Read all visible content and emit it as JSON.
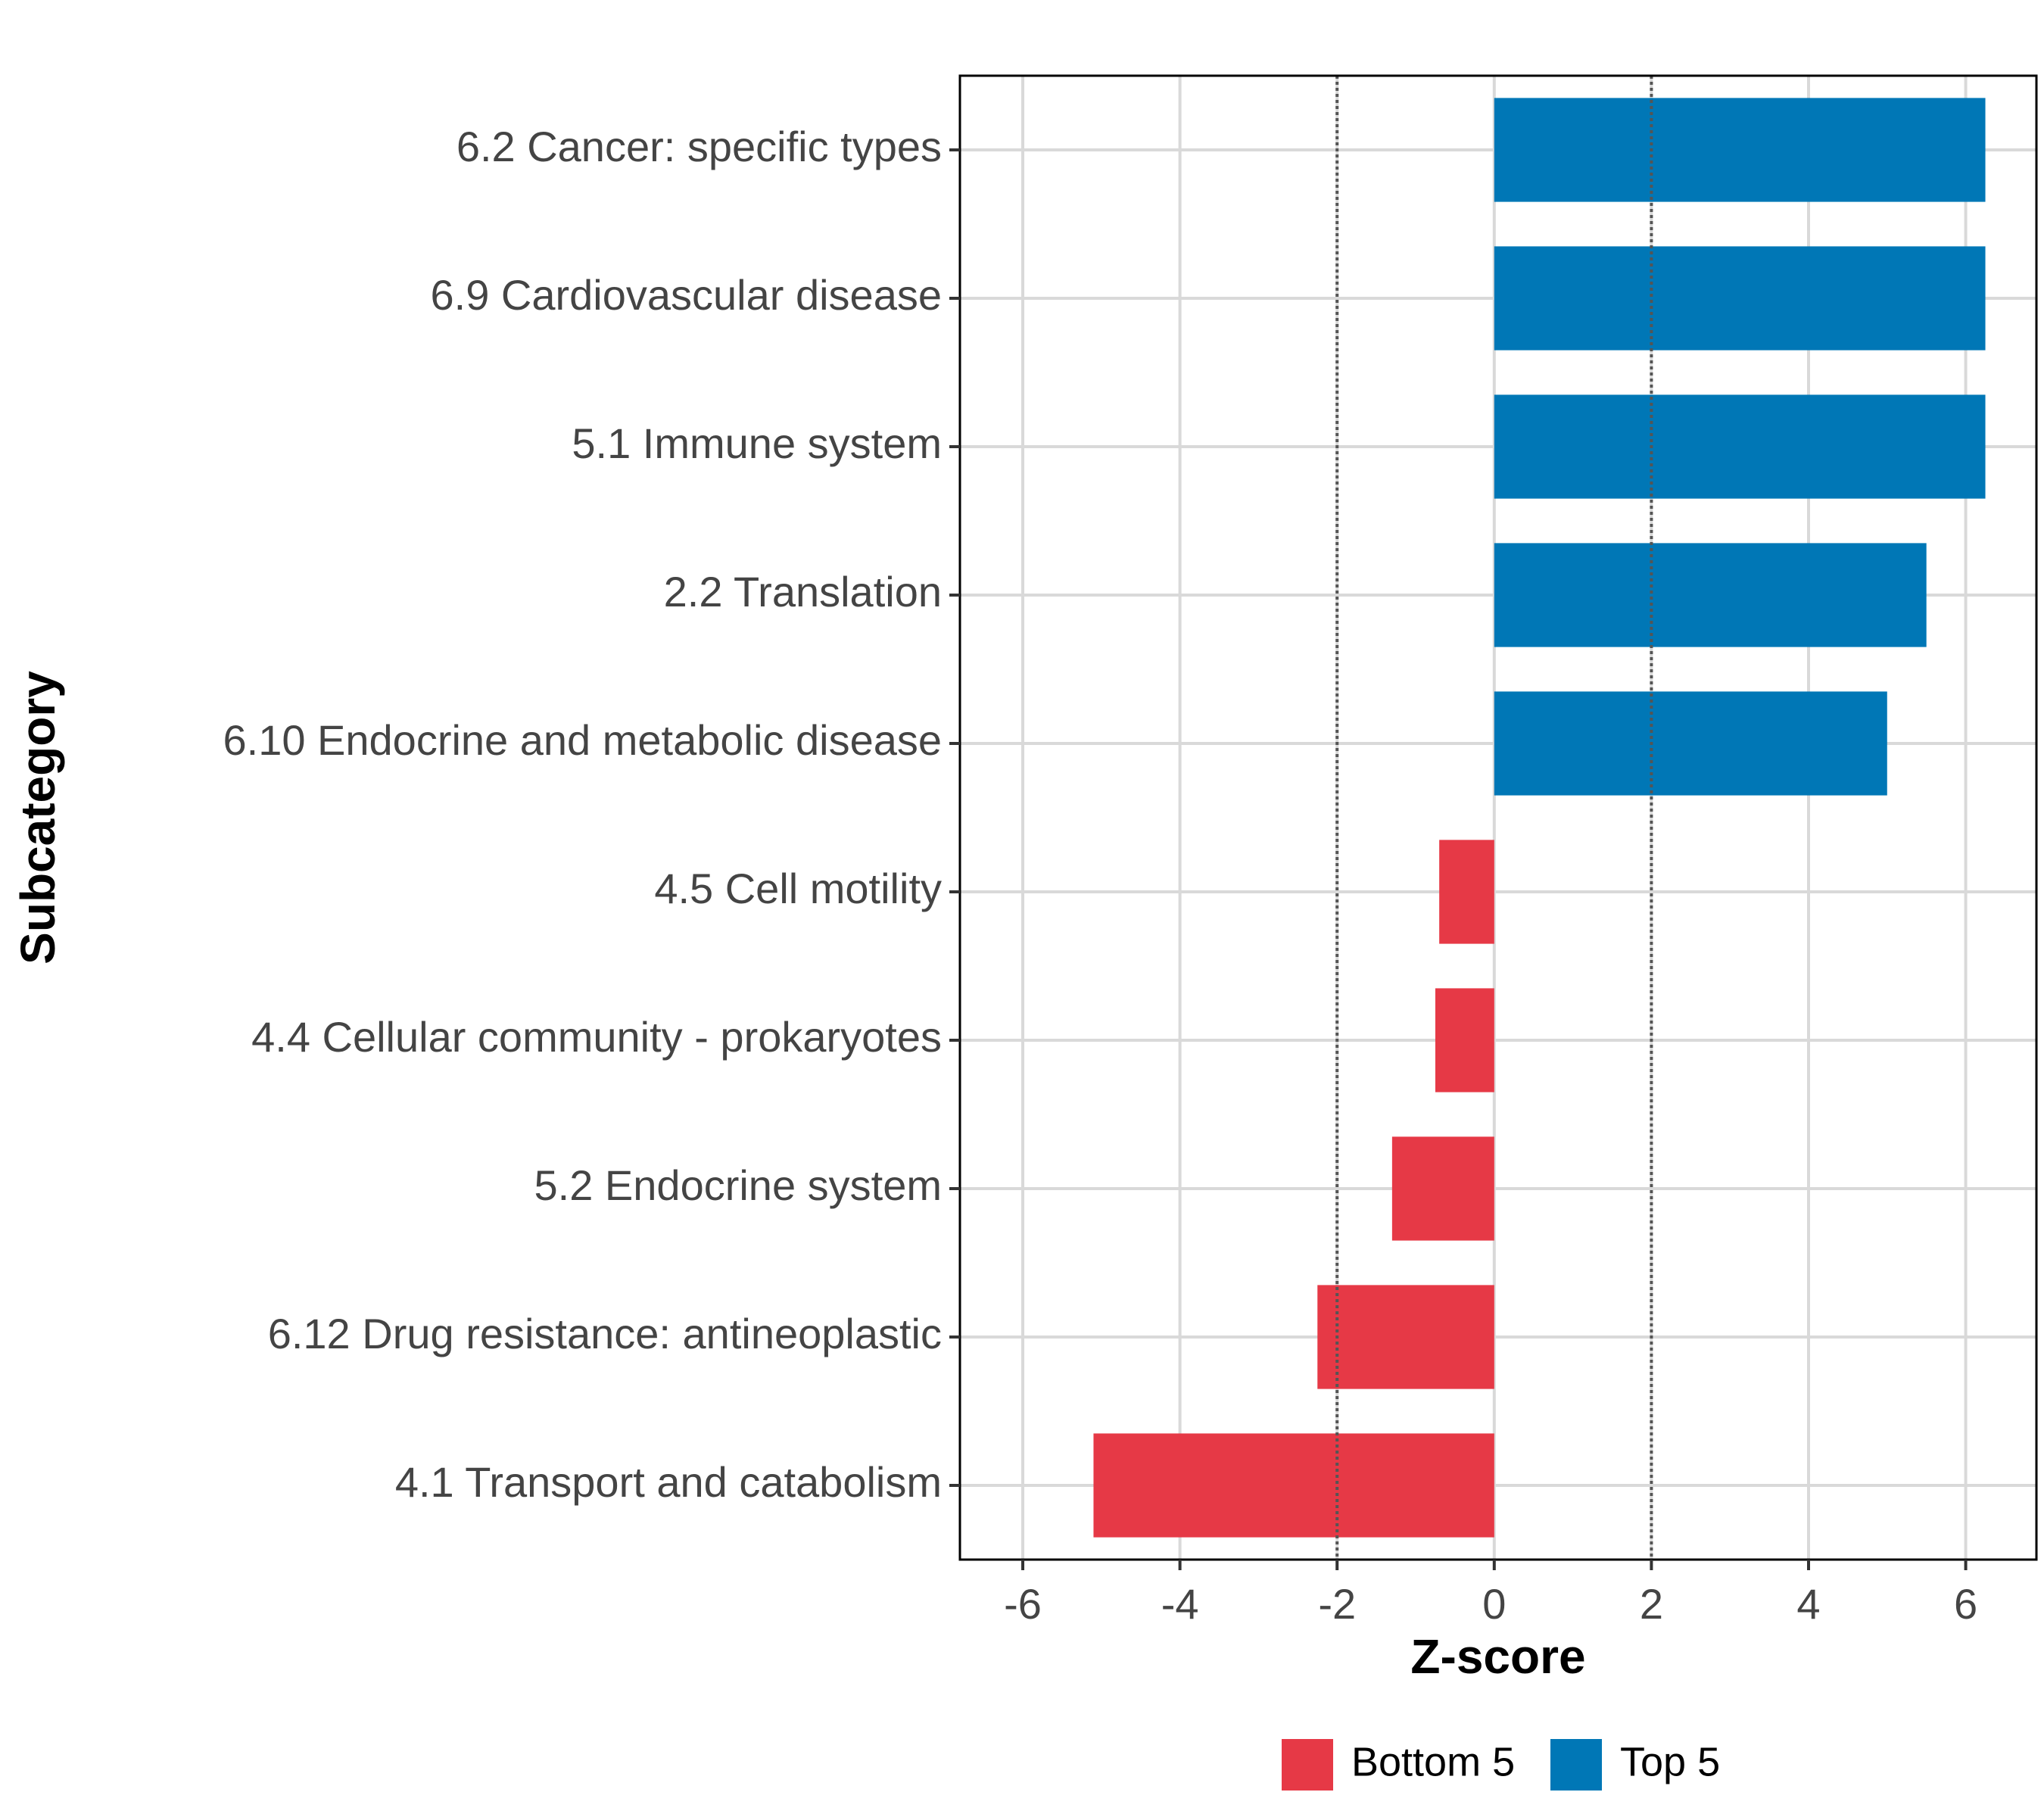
{
  "chart_data": {
    "type": "bar",
    "orientation": "horizontal",
    "title": "",
    "xlabel": "Z-score",
    "ylabel": "Subcategory",
    "xlim": [
      -6.8,
      6.9
    ],
    "xticks": [
      -6,
      -4,
      -2,
      0,
      2,
      4,
      6
    ],
    "xtick_labels": [
      "-6",
      "-4",
      "-2",
      "0",
      "2",
      "4",
      "6"
    ],
    "reference_lines": [
      -2,
      2
    ],
    "grid": true,
    "legend_position": "bottom",
    "categories": [
      "6.2 Cancer: specific types",
      "6.9 Cardiovascular disease",
      "5.1 Immune system",
      "2.2 Translation",
      "6.10 Endocrine and metabolic disease",
      "4.5 Cell motility",
      "4.4 Cellular community - prokaryotes",
      "5.2 Endocrine system",
      "6.12 Drug resistance: antineoplastic",
      "4.1 Transport and catabolism"
    ],
    "values": [
      6.25,
      6.25,
      6.25,
      5.5,
      5.0,
      -0.7,
      -0.75,
      -1.3,
      -2.25,
      -5.1
    ],
    "groups": [
      "Top 5",
      "Top 5",
      "Top 5",
      "Top 5",
      "Top 5",
      "Bottom 5",
      "Bottom 5",
      "Bottom 5",
      "Bottom 5",
      "Bottom 5"
    ],
    "legend": [
      {
        "label": "Bottom 5",
        "color": "#E63946"
      },
      {
        "label": "Top 5",
        "color": "#0077B6"
      }
    ]
  }
}
